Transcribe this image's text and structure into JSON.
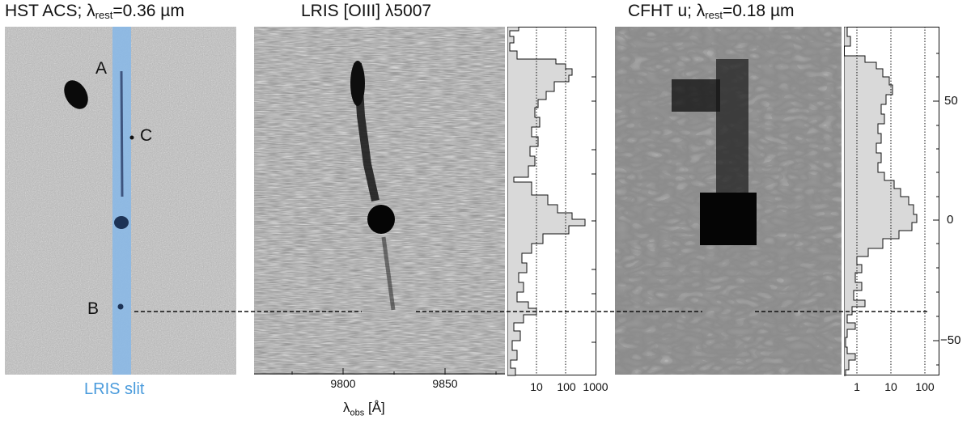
{
  "panels": {
    "hst": {
      "title_main": "HST ACS; λ",
      "title_sub": "rest",
      "title_rest": "=0.36 µm",
      "slit_label": "LRIS slit",
      "sources": [
        {
          "name": "A"
        },
        {
          "name": "B"
        },
        {
          "name": "C"
        }
      ]
    },
    "lris": {
      "title": "LRIS [OIII] λ5007",
      "xaxis_ticks": [
        "9800",
        "9850"
      ],
      "xaxis_title_main": "λ",
      "xaxis_title_sub": "obs",
      "xaxis_title_rest": " [Å]",
      "profile_ticks": [
        "10",
        "100",
        "1000"
      ]
    },
    "cfht": {
      "title_main": "CFHT u; λ",
      "title_sub": "rest",
      "title_rest": "=0.18 µm",
      "profile_ticks": [
        "1",
        "10",
        "100"
      ],
      "yaxis_ticks": [
        "50",
        "0",
        "−50"
      ]
    }
  },
  "colors": {
    "slit": "#8ab8e6",
    "profile_fill": "#d9d9d9",
    "slit_label": "#4a9bdc"
  }
}
